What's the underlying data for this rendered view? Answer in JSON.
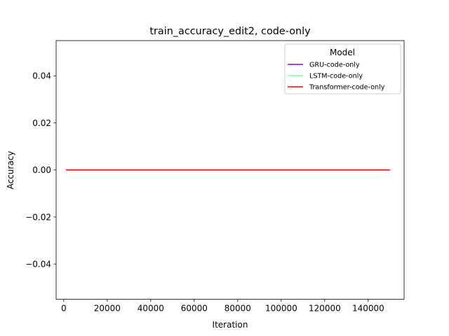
{
  "chart_data": {
    "type": "line",
    "title": "train_accuracy_edit2, code-only",
    "xlabel": "Iteration",
    "ylabel": "Accuracy",
    "xlim": [
      -3500,
      156500
    ],
    "ylim": [
      -0.055,
      0.055
    ],
    "xticks": [
      0,
      20000,
      40000,
      60000,
      80000,
      100000,
      120000,
      140000
    ],
    "yticks": [
      -0.04,
      -0.02,
      0.0,
      0.02,
      0.04
    ],
    "ytick_labels": [
      "−0.04",
      "−0.02",
      "0.00",
      "0.02",
      "0.04"
    ],
    "legend": {
      "title": "Model",
      "placement": "top-right"
    },
    "series": [
      {
        "name": "GRU-code-only",
        "color": "#8000ff",
        "x": [
          1000,
          150000
        ],
        "y": [
          0.0,
          0.0
        ]
      },
      {
        "name": "LSTM-code-only",
        "color": "#80ffb4",
        "x": [
          1000,
          150000
        ],
        "y": [
          0.0,
          0.0
        ]
      },
      {
        "name": "Transformer-code-only",
        "color": "#ff0000",
        "x": [
          1000,
          150000
        ],
        "y": [
          0.0,
          0.0
        ]
      }
    ]
  }
}
